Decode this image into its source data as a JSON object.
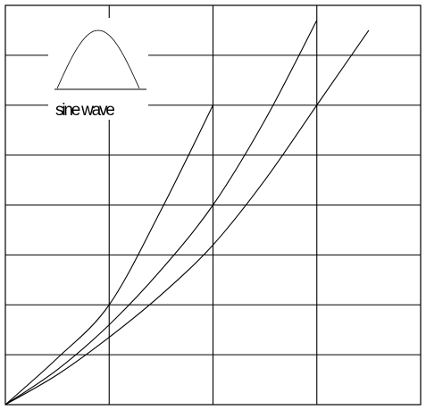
{
  "chart_data": {
    "type": "line",
    "title": "",
    "xlabel": "",
    "ylabel": "",
    "grid": true,
    "xlim": [
      0,
      4
    ],
    "ylim": [
      0,
      8
    ],
    "legend": {
      "label": "sine wave",
      "placement": "top-left",
      "icon": "sine-half-wave-icon"
    },
    "series": [
      {
        "x": [
          0,
          0.5,
          1.0,
          1.5,
          2.0
        ],
        "y": [
          0,
          0.93,
          2.0,
          3.9,
          6.0
        ]
      },
      {
        "x": [
          0,
          0.5,
          1.0,
          1.5,
          2.0,
          2.5,
          3.0
        ],
        "y": [
          0,
          0.7,
          1.6,
          2.7,
          4.0,
          5.7,
          7.7
        ]
      },
      {
        "x": [
          0,
          0.5,
          1.0,
          1.5,
          2.0,
          2.5,
          3.0,
          3.5
        ],
        "y": [
          0,
          0.6,
          1.35,
          2.2,
          3.2,
          4.5,
          6.0,
          7.5
        ]
      }
    ]
  }
}
